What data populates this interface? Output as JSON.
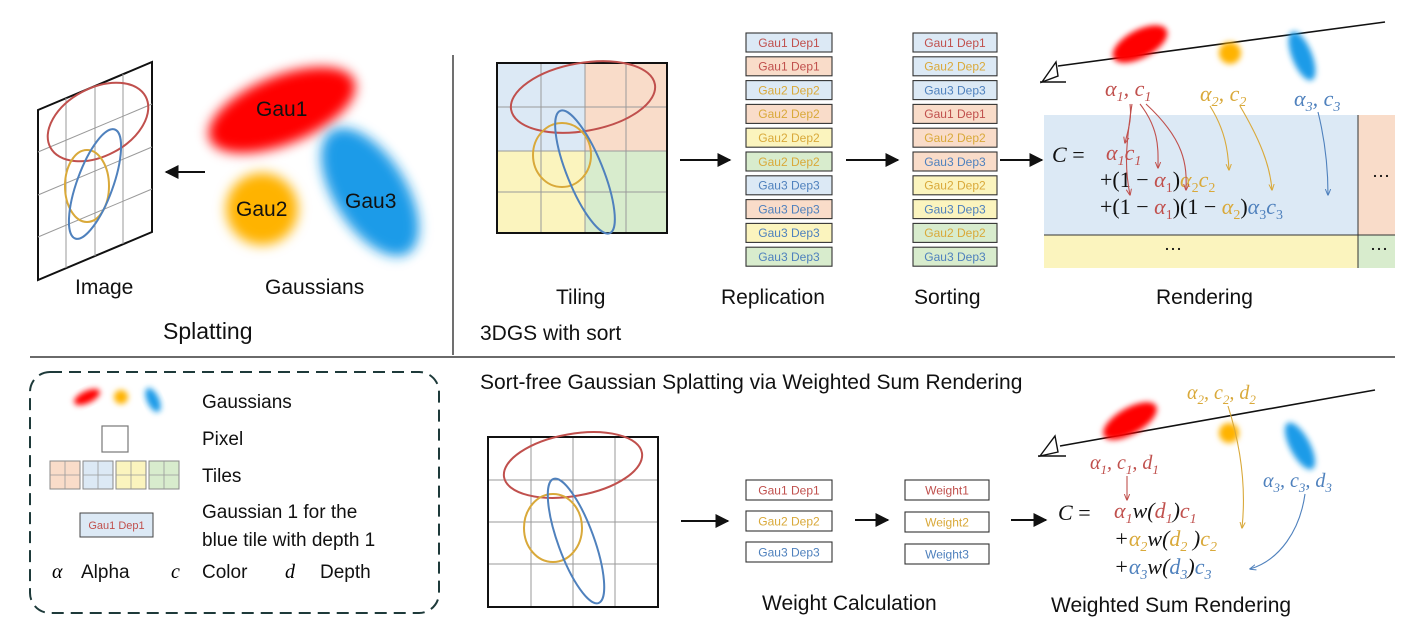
{
  "colors": {
    "red": "#c0504d",
    "orange": "#d9a93a",
    "blue": "#4f81bd",
    "tile_orange": "#f9dcc9",
    "tile_blue": "#dce9f5",
    "tile_yellow": "#fbf4be",
    "tile_green": "#d8eccd",
    "gau1": "#ff0000",
    "gau2": "#ffb300",
    "gau3": "#1a9be8"
  },
  "splatting": {
    "gaussian_labels": [
      "Gau1",
      "Gau2",
      "Gau3"
    ],
    "image_label": "Image",
    "gaussians_label": "Gaussians",
    "title": "Splatting"
  },
  "sort_pipeline": {
    "tiling_label": "Tiling",
    "replication_label": "Replication",
    "sorting_label": "Sorting",
    "rendering_label": "Rendering",
    "section_label": "3DGS with sort",
    "replication_items": [
      {
        "text": "Gau1 Dep1",
        "color": "#c0504d",
        "tile": "#dce9f5"
      },
      {
        "text": "Gau1 Dep1",
        "color": "#c0504d",
        "tile": "#f9dcc9"
      },
      {
        "text": "Gau2 Dep2",
        "color": "#d9a93a",
        "tile": "#dce9f5"
      },
      {
        "text": "Gau2 Dep2",
        "color": "#d9a93a",
        "tile": "#f9dcc9"
      },
      {
        "text": "Gau2 Dep2",
        "color": "#d9a93a",
        "tile": "#fbf4be"
      },
      {
        "text": "Gau2 Dep2",
        "color": "#d9a93a",
        "tile": "#d8eccd"
      },
      {
        "text": "Gau3 Dep3",
        "color": "#4f81bd",
        "tile": "#dce9f5"
      },
      {
        "text": "Gau3 Dep3",
        "color": "#4f81bd",
        "tile": "#f9dcc9"
      },
      {
        "text": "Gau3 Dep3",
        "color": "#4f81bd",
        "tile": "#fbf4be"
      },
      {
        "text": "Gau3 Dep3",
        "color": "#4f81bd",
        "tile": "#d8eccd"
      }
    ],
    "sorting_items": [
      {
        "text": "Gau1 Dep1",
        "color": "#c0504d",
        "tile": "#dce9f5"
      },
      {
        "text": "Gau2 Dep2",
        "color": "#d9a93a",
        "tile": "#dce9f5"
      },
      {
        "text": "Gau3 Dep3",
        "color": "#4f81bd",
        "tile": "#dce9f5"
      },
      {
        "text": "Gau1 Dep1",
        "color": "#c0504d",
        "tile": "#f9dcc9"
      },
      {
        "text": "Gau2 Dep2",
        "color": "#d9a93a",
        "tile": "#f9dcc9"
      },
      {
        "text": "Gau3 Dep3",
        "color": "#4f81bd",
        "tile": "#f9dcc9"
      },
      {
        "text": "Gau2 Dep2",
        "color": "#d9a93a",
        "tile": "#fbf4be"
      },
      {
        "text": "Gau3 Dep3",
        "color": "#4f81bd",
        "tile": "#fbf4be"
      },
      {
        "text": "Gau2 Dep2",
        "color": "#d9a93a",
        "tile": "#d8eccd"
      },
      {
        "text": "Gau3 Dep3",
        "color": "#4f81bd",
        "tile": "#d8eccd"
      }
    ],
    "ellipsis": "···",
    "top_params": {
      "a1c1": [
        "α",
        "1",
        ", c",
        "1"
      ],
      "a2c2": [
        "α",
        "2",
        ", c",
        "2"
      ],
      "a3c3": [
        "α",
        "3",
        ", c",
        "3"
      ]
    }
  },
  "legend": {
    "gaussians_label": "Gaussians",
    "pixel_label": "Pixel",
    "tiles_label": "Tiles",
    "chip_text": "Gau1 Dep1",
    "chip_desc_line1": "Gaussian 1 for the",
    "chip_desc_line2": "blue tile with depth 1",
    "alpha_symbol": "α",
    "alpha_label": "Alpha",
    "color_symbol": "c",
    "color_label": "Color",
    "depth_symbol": "d",
    "depth_label": "Depth"
  },
  "sort_free": {
    "title": "Sort-free Gaussian Splatting via Weighted Sum Rendering",
    "list_items": [
      {
        "text": "Gau1 Dep1",
        "color": "#c0504d"
      },
      {
        "text": "Gau2 Dep2",
        "color": "#d9a93a"
      },
      {
        "text": "Gau3 Dep3",
        "color": "#4f81bd"
      }
    ],
    "weights": [
      {
        "text": "Weight1",
        "color": "#c0504d"
      },
      {
        "text": "Weight2",
        "color": "#d9a93a"
      },
      {
        "text": "Weight3",
        "color": "#4f81bd"
      }
    ],
    "weight_calc_label": "Weight Calculation",
    "weighted_sum_label": "Weighted Sum Rendering"
  }
}
